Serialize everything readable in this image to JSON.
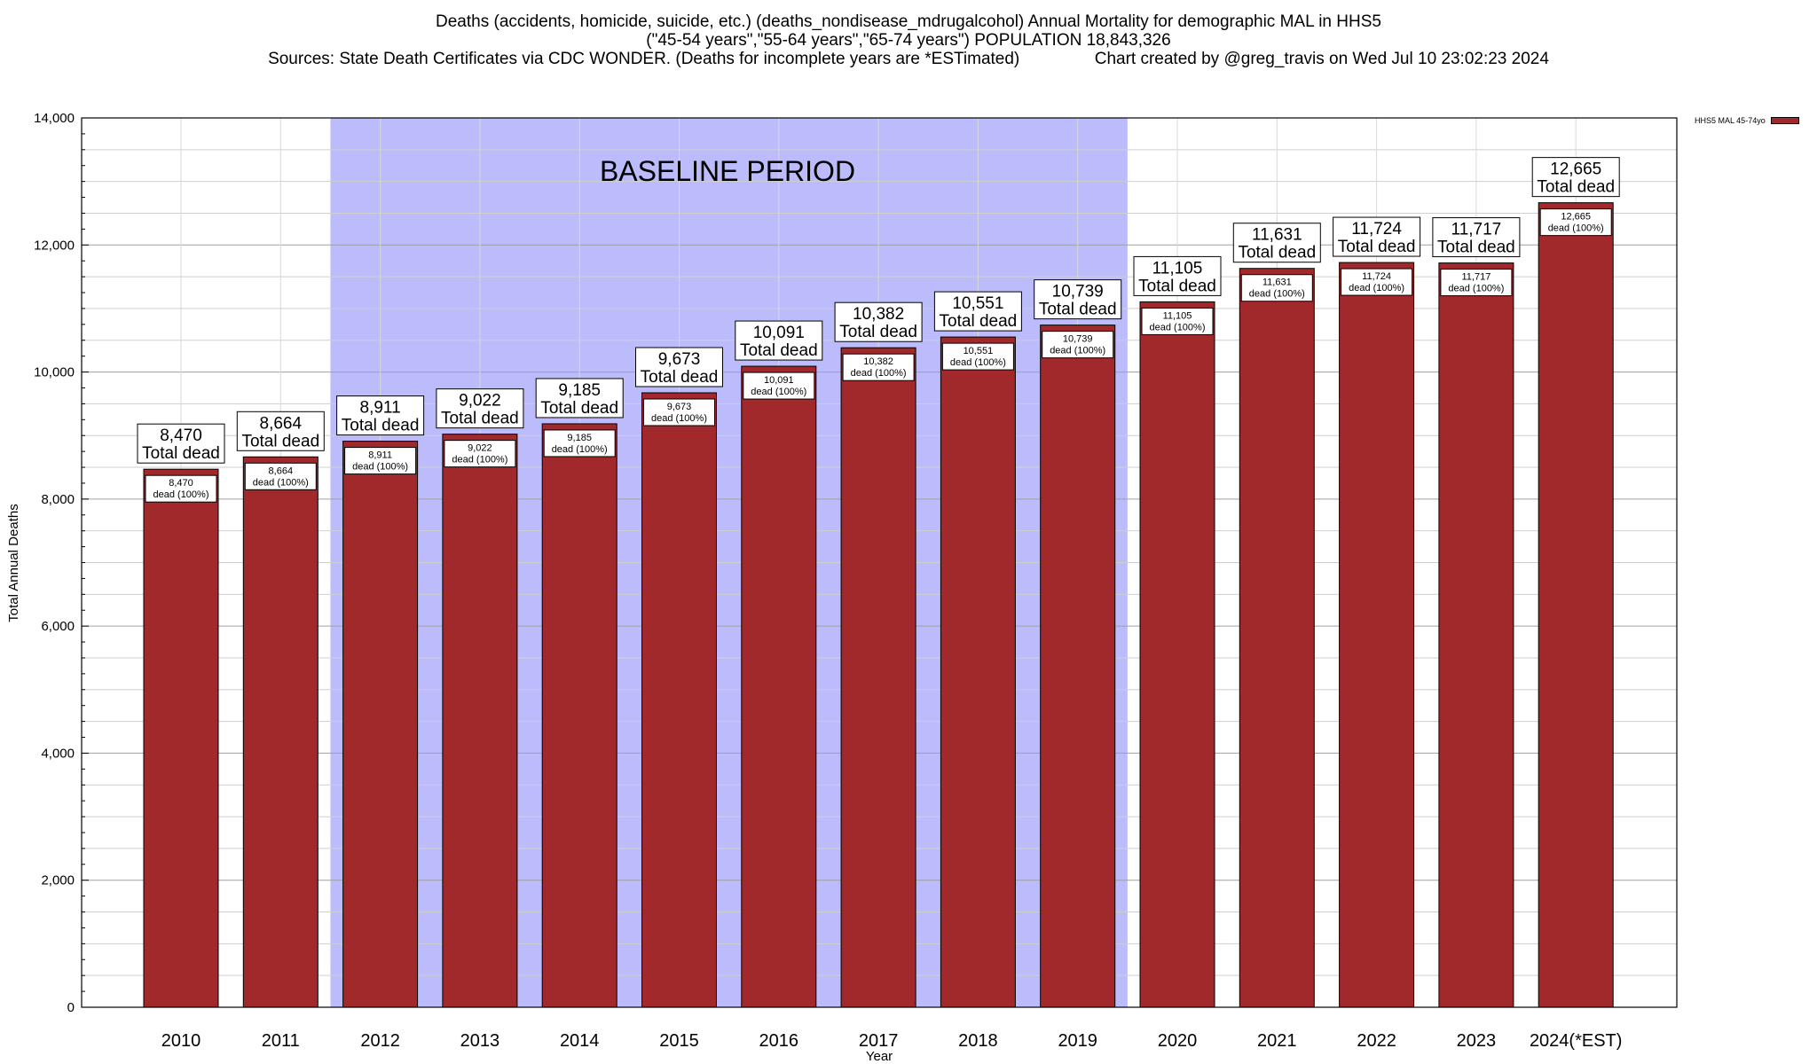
{
  "header": {
    "line1": "Deaths (accidents, homicide, suicide, etc.) (deaths_nondisease_mdrugalcohol) Annual Mortality for demographic MAL in HHS5",
    "line2": "(\"45-54 years\",\"55-64 years\",\"65-74 years\") POPULATION 18,843,326",
    "line3": "Sources: State Death Certificates via CDC WONDER. (Deaths for incomplete years are *ESTimated)                Chart created by @greg_travis on Wed Jul 10 23:02:23 2024"
  },
  "chart_data": {
    "type": "bar",
    "xlabel": "Year",
    "ylabel": "Total Annual Deaths",
    "ylim": [
      0,
      14000
    ],
    "y_ticks": [
      "0",
      "2,000",
      "4,000",
      "6,000",
      "8,000",
      "10,000",
      "12,000",
      "14,000"
    ],
    "y_tick_values": [
      0,
      2000,
      4000,
      6000,
      8000,
      10000,
      12000,
      14000
    ],
    "grid": true,
    "categories": [
      "2010",
      "2011",
      "2012",
      "2013",
      "2014",
      "2015",
      "2016",
      "2017",
      "2018",
      "2019",
      "2020",
      "2021",
      "2022",
      "2023",
      "2024(*EST)"
    ],
    "series": [
      {
        "name": "HHS5 MAL 45-74yo",
        "color": "#a2292b",
        "values": [
          8470,
          8664,
          8911,
          9022,
          9185,
          9673,
          10091,
          10382,
          10551,
          10739,
          11105,
          11631,
          11724,
          11717,
          12665
        ]
      }
    ],
    "top_labels": [
      "8,470",
      "8,664",
      "8,911",
      "9,022",
      "9,185",
      "9,673",
      "10,091",
      "10,382",
      "10,551",
      "10,739",
      "11,105",
      "11,631",
      "11,724",
      "11,717",
      "12,665"
    ],
    "top_label_suffix": "Total dead",
    "inner_label_suffix": "dead (100%)",
    "shaded_region": {
      "label": "BASELINE PERIOD",
      "from_category": "2012",
      "to_category": "2019",
      "color": "#bcbcfc"
    },
    "legend_position": "top-right"
  }
}
